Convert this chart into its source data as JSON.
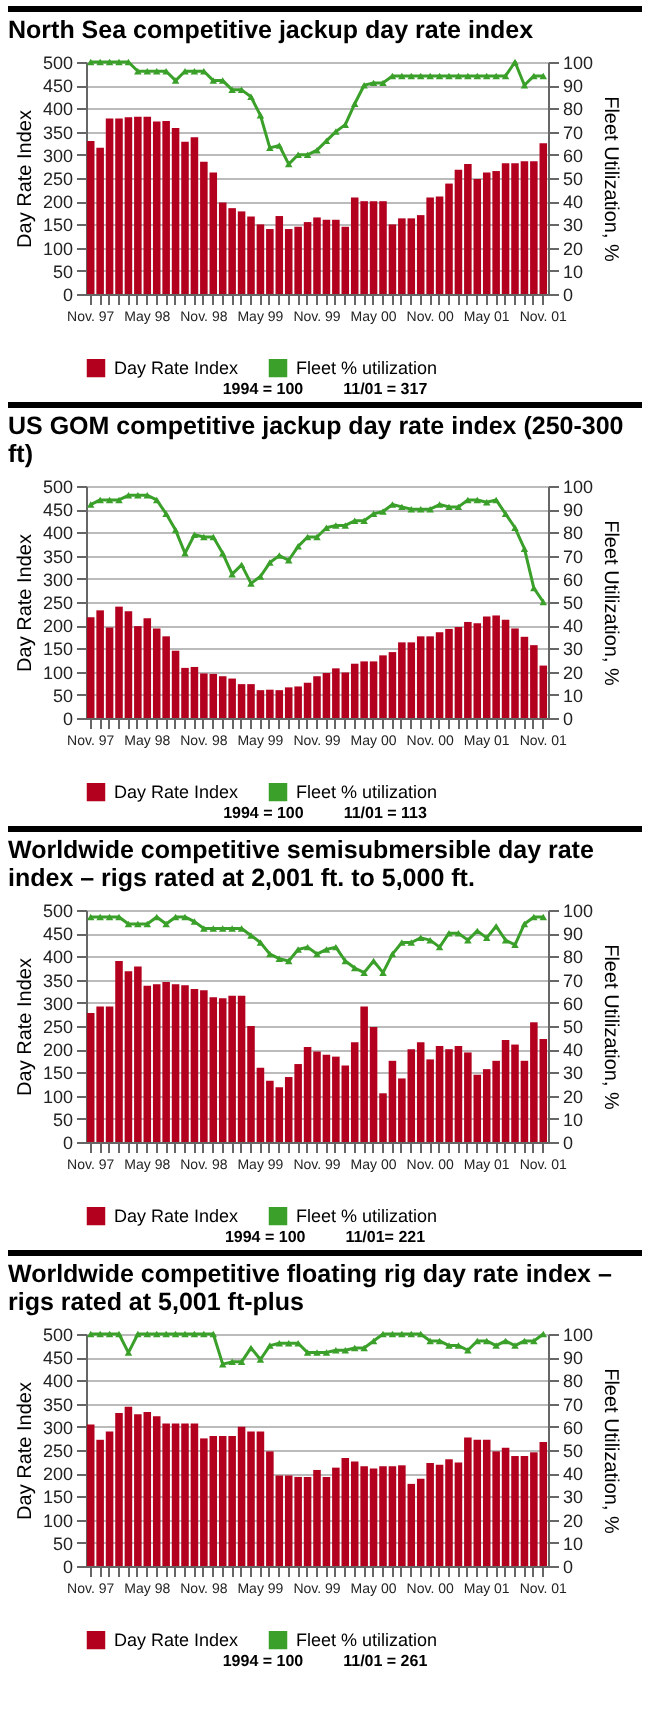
{
  "chart_data": [
    {
      "type": "bar",
      "title": "North Sea competitive jackup day rate index",
      "ylabel": "Day Rate Index",
      "y2label": "Fleet Utilization, %",
      "categories": [
        "Nov. 97",
        null,
        null,
        null,
        null,
        null,
        "May 98",
        null,
        null,
        null,
        null,
        null,
        "Nov. 98",
        null,
        null,
        null,
        null,
        null,
        "May 99",
        null,
        null,
        null,
        null,
        null,
        "Nov. 99",
        null,
        null,
        null,
        null,
        null,
        "May 00",
        null,
        null,
        null,
        null,
        null,
        "Nov. 00",
        null,
        null,
        null,
        null,
        null,
        "May 01",
        null,
        null,
        null,
        null,
        null,
        "Nov. 01"
      ],
      "series": [
        {
          "name": "Day Rate Index",
          "color": "#b2001e",
          "values": [
            330,
            315,
            378,
            378,
            381,
            382,
            382,
            372,
            373,
            358,
            328,
            338,
            285,
            262,
            197,
            185,
            178,
            167,
            150,
            140,
            168,
            140,
            145,
            155,
            165,
            160,
            160,
            145,
            208,
            200,
            200,
            200,
            150,
            163,
            163,
            170,
            208,
            210,
            238,
            268,
            280,
            248,
            262,
            265,
            282,
            282,
            286,
            286,
            325
          ]
        },
        {
          "name": "Fleet % utilization",
          "type": "line",
          "axis": "y2",
          "color": "#3aa02a",
          "values": [
            100,
            100,
            100,
            100,
            100,
            96,
            96,
            96,
            96,
            92,
            96,
            96,
            96,
            92,
            92,
            88,
            88,
            85,
            77,
            63,
            64,
            56,
            60,
            60,
            62,
            66,
            70,
            73,
            82,
            90,
            91,
            91,
            94,
            94,
            94,
            94,
            94,
            94,
            94,
            94,
            94,
            94,
            94,
            94,
            94,
            100,
            90,
            94,
            94
          ]
        }
      ],
      "ylim": [
        0,
        500
      ],
      "yticks": [
        0,
        50,
        100,
        150,
        200,
        250,
        300,
        350,
        400,
        450,
        500
      ],
      "y2lim": [
        0,
        100
      ],
      "y2ticks": [
        0,
        10,
        20,
        30,
        40,
        50,
        60,
        70,
        80,
        90,
        100
      ],
      "grid": "y",
      "legend": "bottom",
      "marker": "triangle",
      "annotations": [
        "1994 = 100",
        "11/01 = 317"
      ]
    },
    {
      "type": "bar",
      "title": "US GOM competitive jackup day rate index (250-300 ft)",
      "ylabel": "Day Rate Index",
      "y2label": "Fleet Utilization, %",
      "categories": [
        "Nov. 97",
        null,
        null,
        null,
        null,
        null,
        "May 98",
        null,
        null,
        null,
        null,
        null,
        "Nov. 98",
        null,
        null,
        null,
        null,
        null,
        "May 99",
        null,
        null,
        null,
        null,
        null,
        "Nov. 99",
        null,
        null,
        null,
        null,
        null,
        "May 00",
        null,
        null,
        null,
        null,
        null,
        "Nov. 00",
        null,
        null,
        null,
        null,
        null,
        "May 01",
        null,
        null,
        null,
        null,
        null,
        "Nov. 01"
      ],
      "series": [
        {
          "name": "Day Rate Index",
          "color": "#b2001e",
          "values": [
            217,
            232,
            195,
            240,
            230,
            198,
            215,
            193,
            176,
            145,
            108,
            110,
            96,
            95,
            90,
            85,
            73,
            73,
            60,
            61,
            60,
            66,
            68,
            76,
            90,
            97,
            107,
            98,
            117,
            122,
            122,
            135,
            142,
            163,
            163,
            176,
            176,
            185,
            192,
            196,
            207,
            204,
            219,
            221,
            212,
            193,
            175,
            157,
            113
          ]
        },
        {
          "name": "Fleet % utilization",
          "type": "line",
          "axis": "y2",
          "color": "#3aa02a",
          "values": [
            92,
            94,
            94,
            94,
            96,
            96,
            96,
            94,
            88,
            81,
            71,
            79,
            78,
            78,
            71,
            62,
            66,
            58,
            61,
            67,
            70,
            68,
            74,
            78,
            78,
            82,
            83,
            83,
            85,
            85,
            88,
            89,
            92,
            91,
            90,
            90,
            90,
            92,
            91,
            91,
            94,
            94,
            93,
            94,
            88,
            82,
            73,
            56,
            50
          ]
        }
      ],
      "ylim": [
        0,
        500
      ],
      "yticks": [
        0,
        50,
        100,
        150,
        200,
        250,
        300,
        350,
        400,
        450,
        500
      ],
      "y2lim": [
        0,
        100
      ],
      "y2ticks": [
        0,
        10,
        20,
        30,
        40,
        50,
        60,
        70,
        80,
        90,
        100
      ],
      "grid": "y",
      "legend": "bottom",
      "marker": "triangle",
      "annotations": [
        "1994 = 100",
        "11/01 = 113"
      ]
    },
    {
      "type": "bar",
      "title": "Worldwide competitive semisubmersible day rate index – rigs rated at 2,001 ft. to 5,000 ft.",
      "ylabel": "Day Rate Index",
      "y2label": "Fleet Utilization, %",
      "categories": [
        "Nov. 97",
        null,
        null,
        null,
        null,
        null,
        "May 98",
        null,
        null,
        null,
        null,
        null,
        "Nov. 98",
        null,
        null,
        null,
        null,
        null,
        "May 99",
        null,
        null,
        null,
        null,
        null,
        "Nov. 99",
        null,
        null,
        null,
        null,
        null,
        "May 00",
        null,
        null,
        null,
        null,
        null,
        "Nov. 00",
        null,
        null,
        null,
        null,
        null,
        "May 01",
        null,
        null,
        null,
        null,
        null,
        "Nov. 01"
      ],
      "series": [
        {
          "name": "Day Rate Index",
          "color": "#b2001e",
          "values": [
            278,
            292,
            292,
            390,
            368,
            378,
            337,
            340,
            345,
            340,
            338,
            330,
            327,
            312,
            310,
            315,
            315,
            250,
            160,
            132,
            118,
            140,
            168,
            205,
            195,
            188,
            184,
            165,
            215,
            292,
            248,
            105,
            175,
            137,
            200,
            215,
            178,
            207,
            200,
            207,
            193,
            145,
            157,
            175,
            220,
            210,
            175,
            258,
            222
          ]
        },
        {
          "name": "Fleet % utilization",
          "type": "line",
          "axis": "y2",
          "color": "#3aa02a",
          "values": [
            97,
            97,
            97,
            97,
            94,
            94,
            94,
            97,
            94,
            97,
            97,
            95,
            92,
            92,
            92,
            92,
            92,
            89,
            86,
            81,
            79,
            78,
            83,
            84,
            81,
            83,
            84,
            78,
            75,
            73,
            78,
            73,
            81,
            86,
            86,
            88,
            87,
            84,
            90,
            90,
            87,
            91,
            88,
            93,
            87,
            85,
            94,
            97,
            97
          ]
        }
      ],
      "ylim": [
        0,
        500
      ],
      "yticks": [
        0,
        50,
        100,
        150,
        200,
        250,
        300,
        350,
        400,
        450,
        500
      ],
      "y2lim": [
        0,
        100
      ],
      "y2ticks": [
        0,
        10,
        20,
        30,
        40,
        50,
        60,
        70,
        80,
        90,
        100
      ],
      "grid": "y",
      "legend": "bottom",
      "marker": "triangle",
      "annotations": [
        "1994 = 100",
        "11/01= 221"
      ]
    },
    {
      "type": "bar",
      "title": "Worldwide competitive floating rig day rate index – rigs rated at 5,001 ft-plus",
      "ylabel": "Day Rate Index",
      "y2label": "Fleet Utilization, %",
      "categories": [
        "Nov. 97",
        null,
        null,
        null,
        null,
        null,
        "May 98",
        null,
        null,
        null,
        null,
        null,
        "Nov. 98",
        null,
        null,
        null,
        null,
        null,
        "May 99",
        null,
        null,
        null,
        null,
        null,
        "Nov. 99",
        null,
        null,
        null,
        null,
        null,
        "May 00",
        null,
        null,
        null,
        null,
        null,
        "Nov. 00",
        null,
        null,
        null,
        null,
        null,
        "May 01",
        null,
        null,
        null,
        null,
        null,
        "Nov. 01"
      ],
      "series": [
        {
          "name": "Day Rate Index",
          "color": "#b2001e",
          "values": [
            305,
            272,
            290,
            330,
            343,
            327,
            332,
            323,
            307,
            307,
            307,
            307,
            275,
            280,
            280,
            280,
            300,
            290,
            290,
            247,
            195,
            195,
            192,
            192,
            207,
            192,
            212,
            233,
            225,
            215,
            210,
            215,
            215,
            217,
            177,
            188,
            222,
            218,
            230,
            223,
            277,
            272,
            272,
            247,
            255,
            237,
            237,
            245,
            267
          ]
        },
        {
          "name": "Fleet % utilization",
          "type": "line",
          "axis": "y2",
          "color": "#3aa02a",
          "values": [
            100,
            100,
            100,
            100,
            92,
            100,
            100,
            100,
            100,
            100,
            100,
            100,
            100,
            100,
            87,
            88,
            88,
            94,
            89,
            95,
            96,
            96,
            96,
            92,
            92,
            92,
            93,
            93,
            94,
            94,
            97,
            100,
            100,
            100,
            100,
            100,
            97,
            97,
            95,
            95,
            93,
            97,
            97,
            95,
            97,
            95,
            97,
            97,
            100
          ]
        }
      ],
      "ylim": [
        0,
        500
      ],
      "yticks": [
        0,
        50,
        100,
        150,
        200,
        250,
        300,
        350,
        400,
        450,
        500
      ],
      "y2lim": [
        0,
        100
      ],
      "y2ticks": [
        0,
        10,
        20,
        30,
        40,
        50,
        60,
        70,
        80,
        90,
        100
      ],
      "grid": "y",
      "legend": "bottom",
      "marker": "triangle",
      "annotations": [
        "1994 = 100",
        "11/01 = 261"
      ]
    }
  ]
}
